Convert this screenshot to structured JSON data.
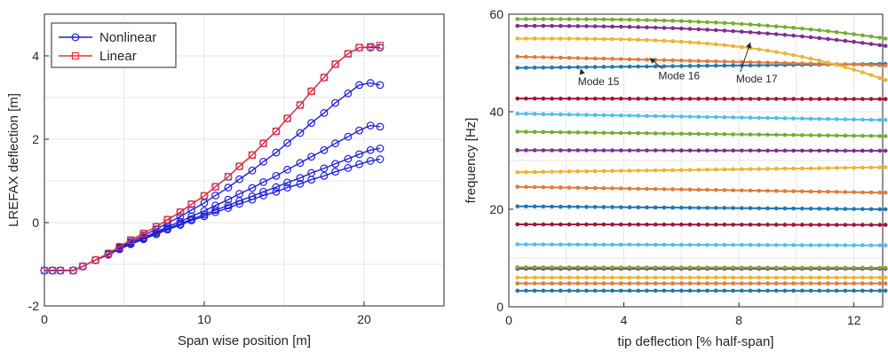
{
  "chart_data": [
    {
      "type": "line",
      "xlabel": "Span wise position [m]",
      "ylabel": "LREFAX deflection [m]",
      "xlim": [
        0,
        25
      ],
      "ylim": [
        -2,
        5
      ],
      "xticks": [
        0,
        10,
        20
      ],
      "yticks": [
        -2,
        0,
        2,
        4
      ],
      "grid": true,
      "legend": {
        "placement": "top-left",
        "entries": [
          "Nonlinear",
          "Linear"
        ]
      },
      "colors": {
        "Nonlinear": "#1f1fd6",
        "Linear": "#e8323c"
      },
      "x": [
        0,
        0.5,
        1,
        1.8,
        2.4,
        3.2,
        4,
        4.7,
        5.4,
        6.2,
        7,
        7.7,
        8.5,
        9.2,
        10,
        10.7,
        11.5,
        12.2,
        13,
        13.7,
        14.5,
        15.2,
        16,
        16.7,
        17.5,
        18.2,
        19,
        19.7,
        20.4,
        21
      ],
      "series": [
        {
          "name": "Nonlinear",
          "values": [
            -1.15,
            -1.15,
            -1.15,
            -1.15,
            -1.05,
            -0.9,
            -0.77,
            -0.64,
            -0.52,
            -0.4,
            -0.28,
            -0.17,
            -0.06,
            0.05,
            0.15,
            0.25,
            0.35,
            0.45,
            0.55,
            0.65,
            0.74,
            0.84,
            0.93,
            1.03,
            1.12,
            1.22,
            1.31,
            1.4,
            1.48,
            1.52
          ]
        },
        {
          "name": "Nonlinear",
          "values": [
            -1.15,
            -1.15,
            -1.15,
            -1.15,
            -1.05,
            -0.9,
            -0.77,
            -0.63,
            -0.5,
            -0.38,
            -0.26,
            -0.14,
            -0.03,
            0.08,
            0.19,
            0.3,
            0.41,
            0.52,
            0.63,
            0.74,
            0.85,
            0.96,
            1.07,
            1.19,
            1.3,
            1.41,
            1.53,
            1.64,
            1.74,
            1.78
          ]
        },
        {
          "name": "Nonlinear",
          "values": [
            -1.15,
            -1.15,
            -1.15,
            -1.15,
            -1.05,
            -0.9,
            -0.76,
            -0.62,
            -0.49,
            -0.36,
            -0.23,
            -0.1,
            0.02,
            0.15,
            0.28,
            0.41,
            0.55,
            0.69,
            0.83,
            0.97,
            1.12,
            1.27,
            1.43,
            1.58,
            1.74,
            1.9,
            2.06,
            2.21,
            2.33,
            2.3
          ]
        },
        {
          "name": "Nonlinear",
          "values": [
            -1.15,
            -1.15,
            -1.15,
            -1.15,
            -1.05,
            -0.9,
            -0.75,
            -0.6,
            -0.46,
            -0.31,
            -0.16,
            -0.01,
            0.14,
            0.3,
            0.47,
            0.65,
            0.84,
            1.04,
            1.25,
            1.46,
            1.68,
            1.91,
            2.15,
            2.39,
            2.63,
            2.87,
            3.1,
            3.3,
            3.35,
            3.3
          ]
        },
        {
          "name": "Nonlinear",
          "values": [
            -1.15,
            -1.15,
            -1.15,
            -1.15,
            -1.05,
            -0.9,
            -0.74,
            -0.58,
            -0.42,
            -0.26,
            -0.1,
            0.07,
            0.25,
            0.44,
            0.64,
            0.86,
            1.1,
            1.35,
            1.62,
            1.9,
            2.19,
            2.5,
            2.82,
            3.15,
            3.48,
            3.8,
            4.05,
            4.2,
            4.2,
            4.2
          ]
        },
        {
          "name": "Linear",
          "values": [
            -1.15,
            -1.15,
            -1.15,
            -1.15,
            -1.05,
            -0.9,
            -0.74,
            -0.58,
            -0.42,
            -0.26,
            -0.1,
            0.07,
            0.25,
            0.44,
            0.64,
            0.86,
            1.1,
            1.35,
            1.62,
            1.9,
            2.19,
            2.5,
            2.82,
            3.15,
            3.48,
            3.8,
            4.05,
            4.2,
            4.22,
            4.25
          ]
        }
      ]
    },
    {
      "type": "line",
      "xlabel": "tip deflection [% half-span]",
      "ylabel": "frequency [Hz]",
      "xlim": [
        0,
        13
      ],
      "ylim": [
        0,
        60
      ],
      "xticks": [
        0,
        4,
        8,
        12
      ],
      "yticks": [
        0,
        20,
        40,
        60
      ],
      "grid": true,
      "x": [
        0.3,
        0.6,
        0.9,
        1.2,
        1.5,
        1.8,
        2.1,
        2.4,
        2.7,
        3.0,
        3.3,
        3.6,
        3.9,
        4.2,
        4.5,
        4.8,
        5.1,
        5.4,
        5.7,
        6.0,
        6.3,
        6.6,
        6.9,
        7.2,
        7.5,
        7.8,
        8.1,
        8.4,
        8.7,
        9.0,
        9.3,
        9.6,
        9.9,
        10.2,
        10.5,
        10.8,
        11.1,
        11.4,
        11.7,
        12.0,
        12.3,
        12.6,
        12.9,
        13.1
      ],
      "modes": [
        {
          "start": 3.3,
          "end": 3.3,
          "curv": 0,
          "color": "#1f77b4"
        },
        {
          "start": 4.8,
          "end": 4.8,
          "curv": 0,
          "color": "#e07b39"
        },
        {
          "start": 6.0,
          "end": 6.0,
          "curv": 0,
          "color": "#eeb32f"
        },
        {
          "start": 7.8,
          "end": 7.8,
          "curv": 0,
          "color": "#7e2f8e"
        },
        {
          "start": 8.1,
          "end": 8.0,
          "curv": 0,
          "color": "#77ac30"
        },
        {
          "start": 12.8,
          "end": 12.6,
          "curv": 0,
          "color": "#4dbeee"
        },
        {
          "start": 16.9,
          "end": 16.8,
          "curv": 0,
          "color": "#a2142f"
        },
        {
          "start": 20.6,
          "end": 20.0,
          "curv": 0,
          "color": "#1f77b4"
        },
        {
          "start": 24.6,
          "end": 23.4,
          "curv": 0,
          "color": "#e07b39"
        },
        {
          "start": 27.6,
          "end": 28.6,
          "curv": 0,
          "color": "#eeb32f"
        },
        {
          "start": 32.1,
          "end": 32.0,
          "curv": 0,
          "color": "#7e2f8e"
        },
        {
          "start": 35.9,
          "end": 35.0,
          "curv": 0,
          "color": "#77ac30"
        },
        {
          "start": 39.6,
          "end": 38.3,
          "curv": 0,
          "color": "#4dbeee"
        },
        {
          "start": 42.7,
          "end": 42.6,
          "curv": 0,
          "color": "#a2142f"
        },
        {
          "start": 49.0,
          "end": 49.8,
          "curv": 0,
          "color": "#1f77b4"
        },
        {
          "start": 51.3,
          "end": 49.5,
          "curv": 0,
          "color": "#e07b39"
        },
        {
          "start": 55.0,
          "end": 46.5,
          "curv": 3.2,
          "color": "#eeb32f"
        },
        {
          "start": 57.6,
          "end": 53.5,
          "curv": 2.5,
          "color": "#7e2f8e"
        },
        {
          "start": 59.0,
          "end": 55.0,
          "curv": 2.8,
          "color": "#77ac30"
        }
      ],
      "annotations": [
        {
          "text": "Mode 15",
          "label_at": [
            2.4,
            45.5
          ],
          "arrow_to": [
            2.5,
            48.8
          ]
        },
        {
          "text": "Mode 16",
          "label_at": [
            5.2,
            46.6
          ],
          "arrow_to": [
            4.9,
            51.0
          ]
        },
        {
          "text": "Mode 17",
          "label_at": [
            7.9,
            46.0
          ],
          "arrow_to": [
            8.4,
            54.2
          ]
        }
      ]
    }
  ]
}
